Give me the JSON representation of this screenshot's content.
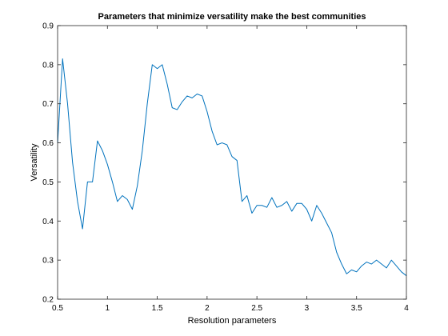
{
  "chart_data": {
    "type": "line",
    "title": "Parameters that minimize versatility make the best communities",
    "xlabel": "Resolution parameters",
    "ylabel": "Versatility",
    "xlim": [
      0.5,
      4
    ],
    "ylim": [
      0.2,
      0.9
    ],
    "xticks": [
      0.5,
      1,
      1.5,
      2,
      2.5,
      3,
      3.5,
      4
    ],
    "xtick_labels": [
      "0.5",
      "1",
      "1.5",
      "2",
      "2.5",
      "3",
      "3.5",
      "4"
    ],
    "yticks": [
      0.2,
      0.3,
      0.4,
      0.5,
      0.6,
      0.7,
      0.8,
      0.9
    ],
    "ytick_labels": [
      "0.2",
      "0.3",
      "0.4",
      "0.5",
      "0.6",
      "0.7",
      "0.8",
      "0.9"
    ],
    "grid": false,
    "line_color": "#0072bd",
    "series": [
      {
        "x": [
          0.5,
          0.55,
          0.6,
          0.65,
          0.7,
          0.75,
          0.8,
          0.85,
          0.9,
          0.95,
          1.0,
          1.05,
          1.1,
          1.15,
          1.2,
          1.25,
          1.3,
          1.35,
          1.4,
          1.45,
          1.5,
          1.55,
          1.6,
          1.65,
          1.7,
          1.75,
          1.8,
          1.85,
          1.9,
          1.95,
          2.0,
          2.05,
          2.1,
          2.15,
          2.2,
          2.25,
          2.3,
          2.35,
          2.4,
          2.45,
          2.5,
          2.55,
          2.6,
          2.65,
          2.7,
          2.75,
          2.8,
          2.85,
          2.9,
          2.95,
          3.0,
          3.05,
          3.1,
          3.15,
          3.2,
          3.25,
          3.3,
          3.35,
          3.4,
          3.45,
          3.5,
          3.55,
          3.6,
          3.65,
          3.7,
          3.75,
          3.8,
          3.85,
          3.9,
          3.95,
          4.0
        ],
        "y": [
          0.6,
          0.815,
          0.7,
          0.55,
          0.45,
          0.38,
          0.5,
          0.5,
          0.605,
          0.58,
          0.545,
          0.5,
          0.45,
          0.465,
          0.455,
          0.43,
          0.49,
          0.58,
          0.7,
          0.8,
          0.79,
          0.8,
          0.75,
          0.69,
          0.685,
          0.705,
          0.72,
          0.715,
          0.725,
          0.72,
          0.68,
          0.63,
          0.595,
          0.6,
          0.595,
          0.565,
          0.555,
          0.45,
          0.465,
          0.42,
          0.44,
          0.44,
          0.435,
          0.46,
          0.435,
          0.44,
          0.45,
          0.425,
          0.445,
          0.445,
          0.43,
          0.4,
          0.44,
          0.42,
          0.395,
          0.37,
          0.32,
          0.29,
          0.265,
          0.275,
          0.27,
          0.285,
          0.295,
          0.29,
          0.3,
          0.29,
          0.28,
          0.3,
          0.285,
          0.27,
          0.26
        ]
      }
    ]
  }
}
